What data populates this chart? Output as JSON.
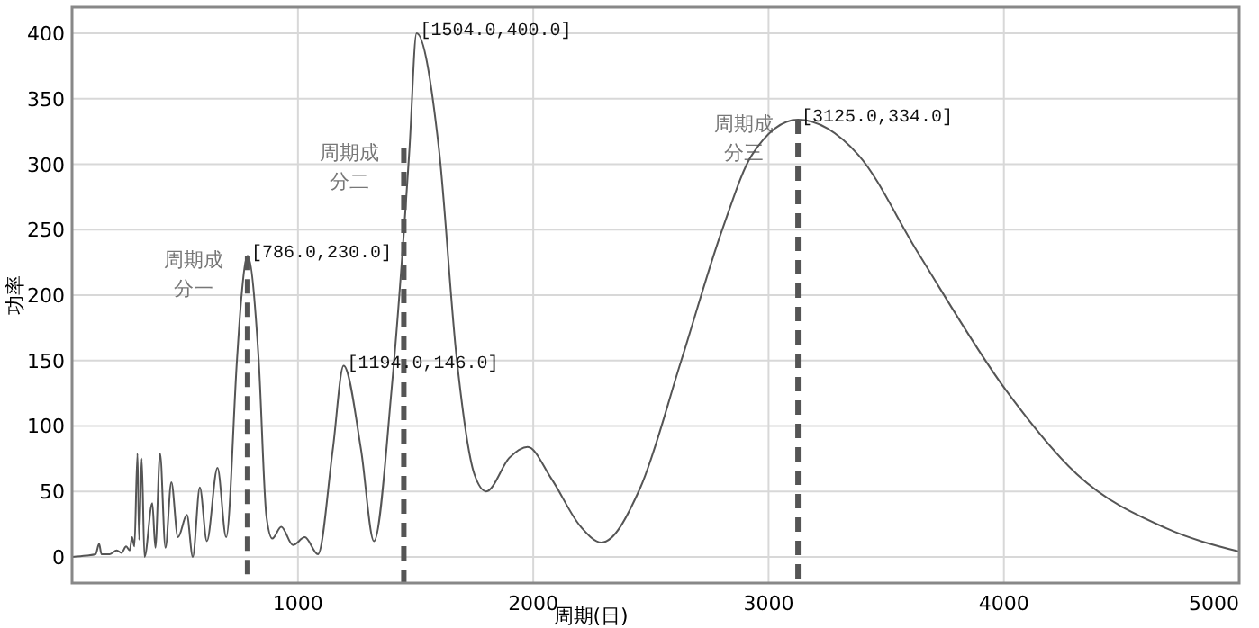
{
  "chart_data": {
    "type": "line",
    "xlabel": "周期(日)",
    "ylabel": "功率",
    "xlim": [
      40,
      5000
    ],
    "xticks": [
      1000,
      2000,
      3000,
      4000,
      5000
    ],
    "ylim": [
      -20,
      420
    ],
    "yticks": [
      0,
      50,
      100,
      150,
      200,
      250,
      300,
      350,
      400
    ],
    "grid": true,
    "line_style": "solid",
    "marker": "none",
    "series": [
      {
        "color": "#555555",
        "x": [
          40,
          100,
          140,
          155,
          165,
          200,
          230,
          250,
          270,
          285,
          295,
          305,
          318,
          325,
          336,
          348,
          381,
          394,
          414,
          437,
          462,
          490,
          528,
          553,
          583,
          613,
          658,
          695,
          741,
          759,
          786,
          833,
          866,
          891,
          929,
          979,
          1029,
          1085,
          1148,
          1194,
          1268,
          1323,
          1398,
          1474,
          1504,
          1599,
          1675,
          1750,
          1800,
          1900,
          1976,
          2076,
          2202,
          2290,
          2453,
          2629,
          2805,
          2929,
          3125,
          3382,
          3633,
          4010,
          4311,
          4688,
          5000
        ],
        "values": [
          0,
          1,
          2,
          10,
          2,
          2,
          5,
          3,
          8,
          5,
          15,
          8,
          79,
          13,
          75,
          0,
          41,
          7,
          79,
          7,
          57,
          15,
          32,
          0,
          53,
          12,
          68,
          15,
          151,
          197,
          230,
          151,
          31,
          14,
          23,
          9,
          15,
          2,
          82,
          146,
          82,
          12,
          128,
          312,
          400,
          312,
          151,
          63,
          50,
          76,
          84,
          60,
          23,
          11,
          52,
          150,
          251,
          307,
          334,
          307,
          233,
          127,
          63,
          22,
          4
        ]
      }
    ],
    "ref_lines": [
      {
        "axis": "x",
        "value": 786,
        "color": "#555555",
        "line_style": "dashed",
        "label": "周期成分一"
      },
      {
        "axis": "x",
        "value": 1450,
        "color": "#555555",
        "line_style": "dashed",
        "label": "周期成分二"
      },
      {
        "axis": "x",
        "value": 3125,
        "color": "#555555",
        "line_style": "dashed",
        "label": "周期成分三"
      }
    ],
    "annotations": [
      {
        "text": "[786.0,230.0]",
        "x": 786,
        "y": 230
      },
      {
        "text": "[1194.0,146.0]",
        "x": 1194,
        "y": 146
      },
      {
        "text": "[1504.0,400.0]",
        "x": 1504,
        "y": 400
      },
      {
        "text": "[3125.0,334.0]",
        "x": 3125,
        "y": 334
      }
    ]
  }
}
